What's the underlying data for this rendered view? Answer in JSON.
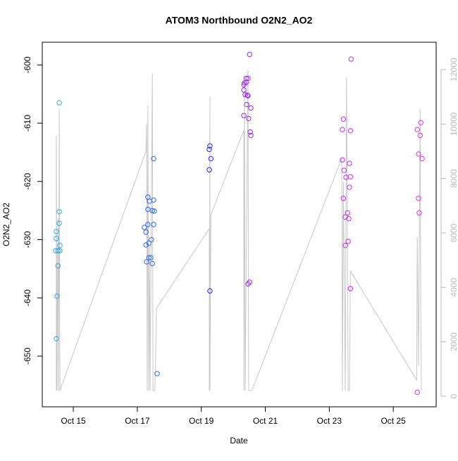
{
  "chart_data": {
    "type": "scatter",
    "title": "ATOM3 Northbound O2N2_AO2",
    "x_label": "Date",
    "y_label": "O2N2_AO2",
    "xlim": [
      14.03,
      26.34
    ],
    "ylim": [
      -658.7,
      -596.1
    ],
    "y2lim": [
      -388,
      13009
    ],
    "xticks": [
      {
        "value": 15,
        "label": "Oct 15"
      },
      {
        "value": 17,
        "label": "Oct 17"
      },
      {
        "value": 19,
        "label": "Oct 19"
      },
      {
        "value": 21,
        "label": "Oct 21"
      },
      {
        "value": 23,
        "label": "Oct 23"
      },
      {
        "value": 25,
        "label": "Oct 25"
      }
    ],
    "yticks": [
      -650,
      -640,
      -630,
      -620,
      -610,
      -600
    ],
    "y2ticks": [
      0,
      2000,
      4000,
      6000,
      8000,
      10000,
      12000
    ],
    "series": [
      {
        "color": "#2aa8e6",
        "x": [
          14.56,
          14.56,
          14.56,
          14.58,
          14.47,
          14.47,
          14.45,
          14.52,
          14.58,
          14.52,
          14.49,
          14.47
        ],
        "values": [
          -606.5,
          -625.2,
          -627.2,
          -631.0,
          -628.6,
          -629.8,
          -631.9,
          -631.9,
          -631.9,
          -634.5,
          -639.7,
          -647.0
        ]
      },
      {
        "color": "#2f6cec",
        "x": [
          17.51,
          17.33,
          17.51,
          17.38,
          17.33,
          17.47,
          17.53,
          17.22,
          17.33,
          17.51,
          17.27,
          17.44,
          17.36,
          17.27,
          17.36,
          17.42,
          17.29,
          17.47,
          17.62
        ],
        "values": [
          -616.1,
          -622.7,
          -623.2,
          -623.4,
          -624.8,
          -625.0,
          -625.1,
          -627.9,
          -627.4,
          -627.4,
          -628.7,
          -630.0,
          -630.6,
          -630.9,
          -633.1,
          -633.1,
          -633.8,
          -634.1,
          -653.0
        ]
      },
      {
        "color": "#2828d8",
        "x": [
          19.27,
          19.25,
          19.3,
          19.25,
          19.27
        ],
        "values": [
          -613.9,
          -614.5,
          -616.1,
          -618.0,
          -638.8
        ]
      },
      {
        "color": "#9a2ae8",
        "x": [
          20.51,
          20.46,
          20.4,
          20.35,
          20.33,
          20.4,
          20.33,
          20.37,
          20.44,
          20.46,
          20.42,
          20.55,
          20.48,
          20.33,
          20.53,
          20.55,
          20.51,
          20.46
        ],
        "values": [
          -598.2,
          -602.3,
          -602.3,
          -603.1,
          -603.4,
          -603.0,
          -604.3,
          -605.1,
          -605.2,
          -605.3,
          -606.8,
          -607.4,
          -609.2,
          -608.7,
          -611.5,
          -612.1,
          -637.3,
          -637.6
        ]
      },
      {
        "color": "#c030ea",
        "x": [
          23.68,
          23.44,
          23.41,
          23.66,
          23.41,
          23.63,
          23.46,
          23.52,
          23.66,
          23.63,
          23.44,
          23.57,
          23.5,
          23.61,
          23.59,
          23.5,
          23.66
        ],
        "values": [
          -599.0,
          -609.3,
          -611.1,
          -611.3,
          -616.3,
          -616.9,
          -618.1,
          -619.3,
          -619.2,
          -621.0,
          -622.9,
          -625.4,
          -626.1,
          -626.4,
          -630.3,
          -631.0,
          -638.4
        ]
      },
      {
        "color": "#e032e0",
        "x": [
          25.86,
          25.75,
          25.84,
          25.79,
          25.9,
          25.79,
          25.81,
          25.75
        ],
        "values": [
          -609.9,
          -611.1,
          -612.1,
          -615.3,
          -616.1,
          -622.9,
          -625.4,
          -656.2
        ]
      },
      {
        "color": "#c8c8c8",
        "axis": "y2",
        "style": "line",
        "x": [
          14.47,
          14.47,
          14.49,
          14.52,
          14.54,
          14.56,
          14.58,
          17.27,
          17.29,
          17.31,
          17.33,
          17.36,
          17.38,
          17.4,
          17.47,
          17.49,
          17.55,
          17.6,
          19.25,
          19.25,
          19.27,
          19.27,
          19.3,
          20.33,
          20.33,
          20.35,
          20.37,
          20.46,
          20.48,
          20.55,
          20.58,
          23.39,
          23.41,
          23.44,
          23.5,
          23.54,
          23.59,
          23.63,
          23.66,
          25.73,
          25.75,
          25.79,
          25.84,
          25.86,
          25.88
        ],
        "values": [
          207,
          9573,
          207,
          6546,
          207,
          10556,
          207,
          9004,
          10013,
          207,
          10686,
          207,
          5511,
          207,
          11876,
          207,
          207,
          3234,
          6158,
          207,
          11022,
          207,
          6670,
          9780,
          207,
          11540,
          207,
          11979,
          207,
          207,
          207,
          8745,
          207,
          7890,
          207,
          11720,
          207,
          207,
          4605,
          595,
          5847,
          1112,
          10556,
          2975,
          207
        ]
      }
    ]
  }
}
